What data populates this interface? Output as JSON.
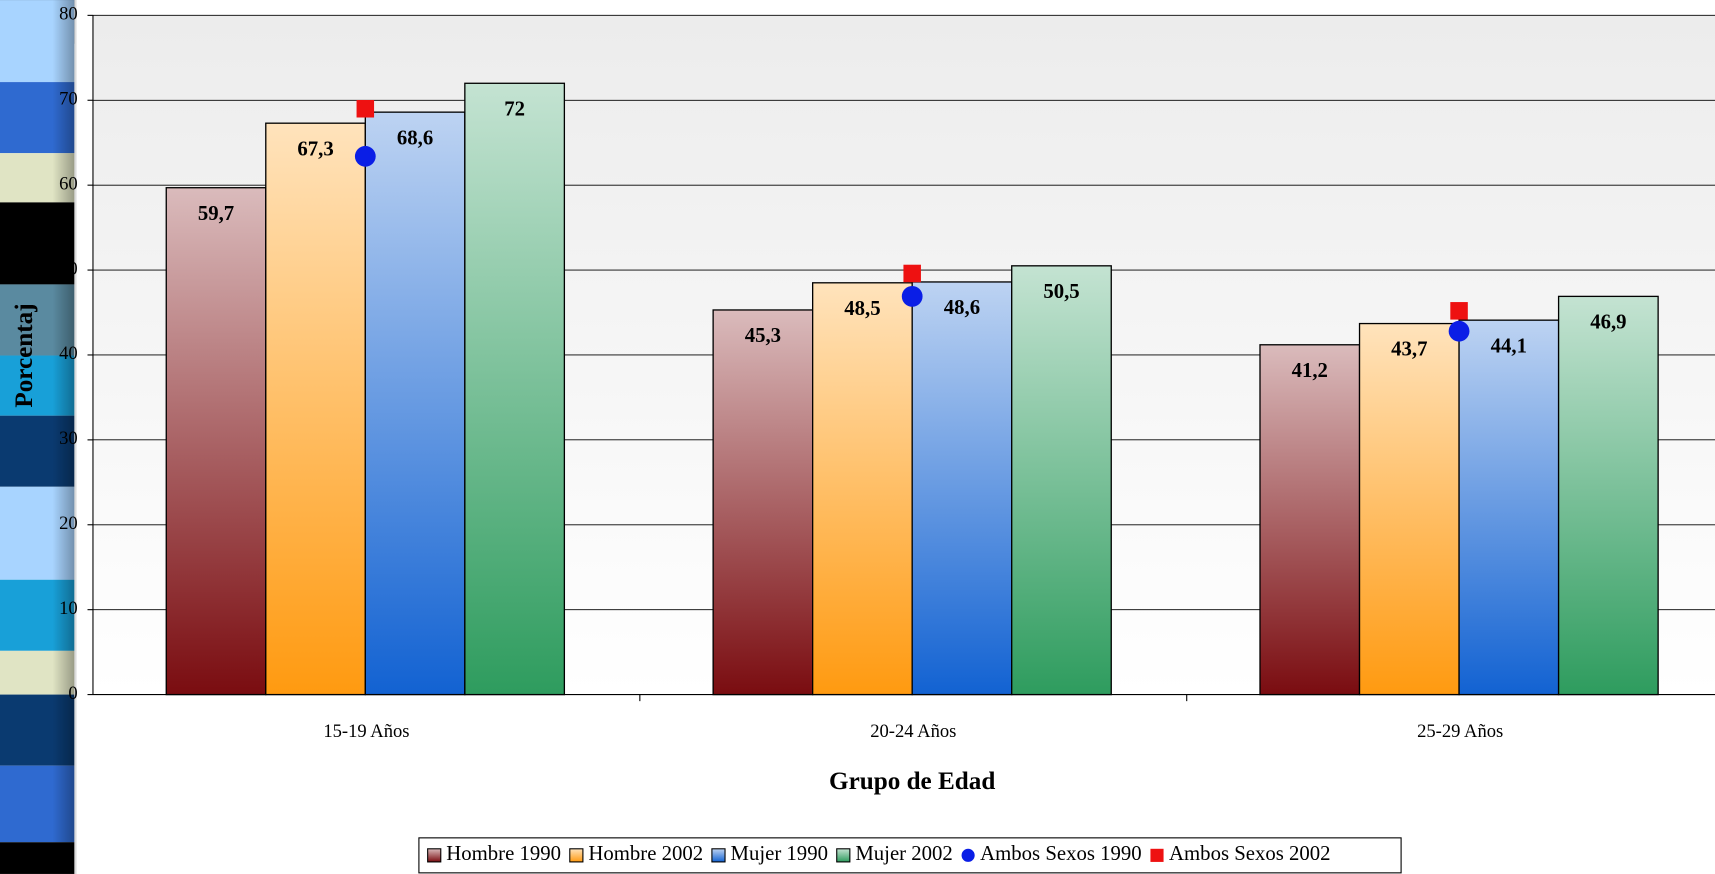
{
  "chart_data": {
    "type": "bar",
    "y_label": "Porcentaj",
    "x_label": "Grupo de Edad",
    "categories": [
      "15-19 Años",
      "20-24 Años",
      "25-29 Años"
    ],
    "ylim": [
      0,
      80
    ],
    "yticks": [
      0,
      10,
      20,
      30,
      40,
      50,
      60,
      70,
      80
    ],
    "grid": true,
    "legend": "bottom",
    "series": [
      {
        "name": "Hombre 1990",
        "color": "#7a0c10",
        "values": [
          59.7,
          45.3,
          41.2
        ],
        "value_labels": [
          "59,7",
          "45,3",
          "41,2"
        ]
      },
      {
        "name": "Hombre 2002",
        "color": "#ff9a10",
        "values": [
          67.3,
          48.5,
          43.7
        ],
        "value_labels": [
          "67,3",
          "48,5",
          "43,7"
        ]
      },
      {
        "name": "Mujer 1990",
        "color": "#1262d2",
        "values": [
          68.6,
          48.6,
          44.1
        ],
        "value_labels": [
          "68,6",
          "48,6",
          "44,1"
        ]
      },
      {
        "name": "Mujer 2002",
        "color": "#2e9c5e",
        "values": [
          72,
          50.5,
          46.9
        ],
        "value_labels": [
          "72",
          "50,5",
          "46,9"
        ]
      },
      {
        "name": "Ambos Sexos 1990",
        "color": "#0a1ee6",
        "marker": "circle",
        "values": [
          63.4,
          46.9,
          42.8
        ]
      },
      {
        "name": "Ambos Sexos 2002",
        "color": "#ee1111",
        "marker": "square",
        "values": [
          69.0,
          49.6,
          45.2
        ]
      }
    ]
  }
}
